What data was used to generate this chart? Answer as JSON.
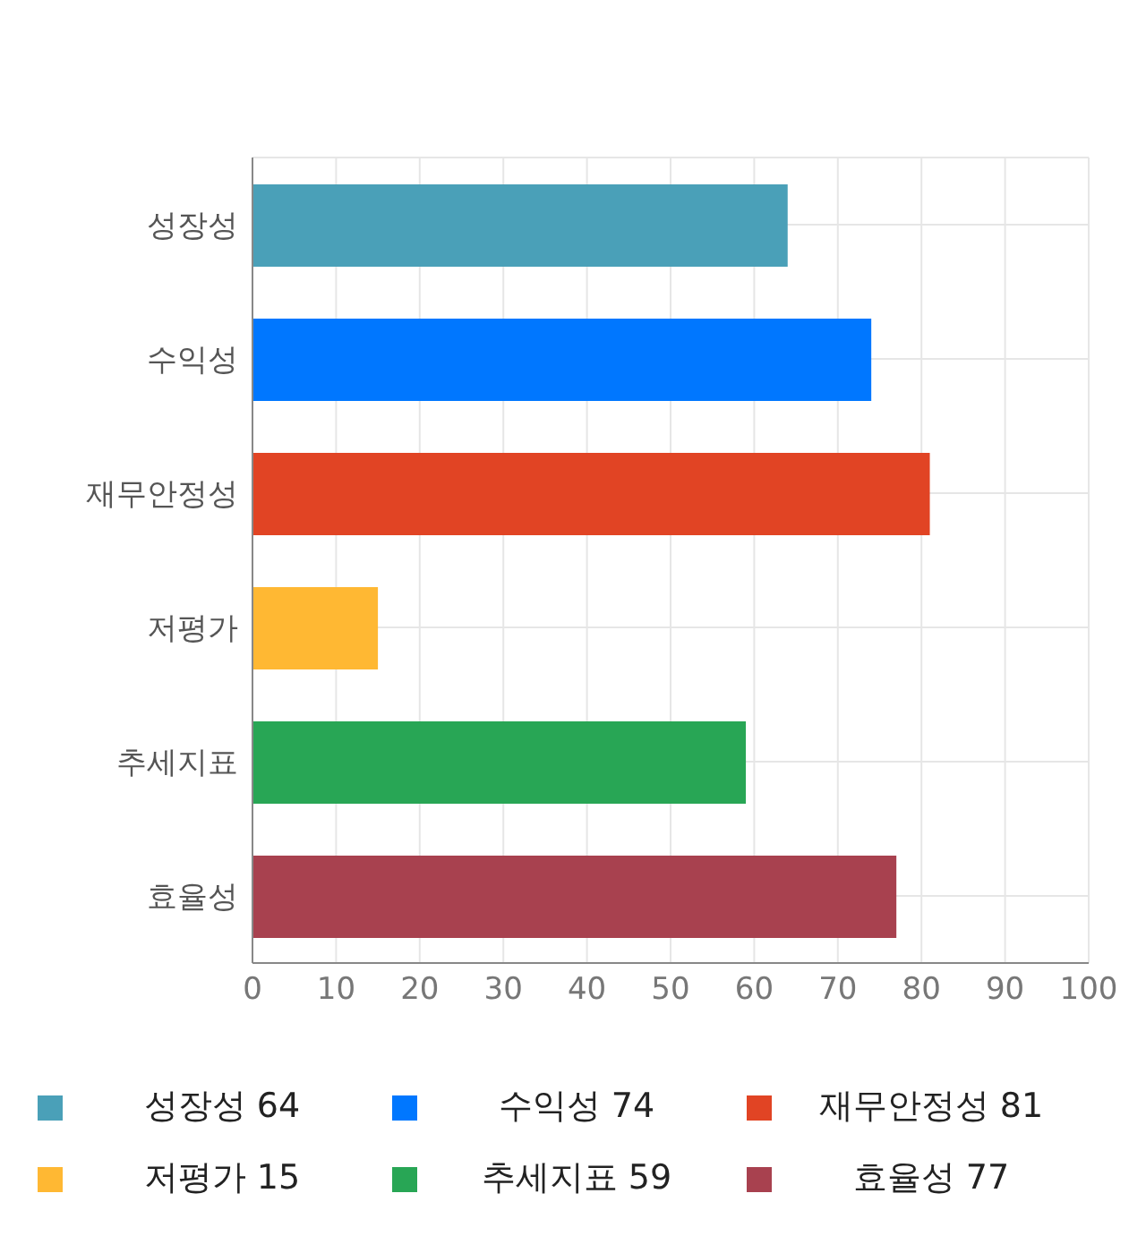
{
  "chart_data": {
    "type": "bar",
    "orientation": "horizontal",
    "stacked": true,
    "categories": [
      "성장성",
      "수익성",
      "재무안정성",
      "저평가",
      "추세지표",
      "효율성"
    ],
    "series": [
      {
        "name": "성장성 64",
        "color": "#4aa0b8",
        "values": [
          64,
          null,
          null,
          null,
          null,
          null
        ]
      },
      {
        "name": "수익성 74",
        "color": "#0077ff",
        "values": [
          null,
          74,
          null,
          null,
          null,
          null
        ]
      },
      {
        "name": "재무안정성 81",
        "color": "#e14424",
        "values": [
          null,
          null,
          81,
          null,
          null,
          null
        ]
      },
      {
        "name": "저평가 15",
        "color": "#ffb833",
        "values": [
          null,
          null,
          null,
          15,
          null,
          null
        ]
      },
      {
        "name": "추세지표 59",
        "color": "#28a655",
        "values": [
          null,
          null,
          null,
          null,
          59,
          null
        ]
      },
      {
        "name": "효율성 77",
        "color": "#a8414f",
        "values": [
          null,
          null,
          null,
          null,
          null,
          77
        ]
      }
    ],
    "xlim": [
      0,
      100
    ],
    "xticks": [
      0,
      10,
      20,
      30,
      40,
      50,
      60,
      70,
      80,
      90,
      100
    ],
    "grid": true,
    "legend": "bottom"
  }
}
